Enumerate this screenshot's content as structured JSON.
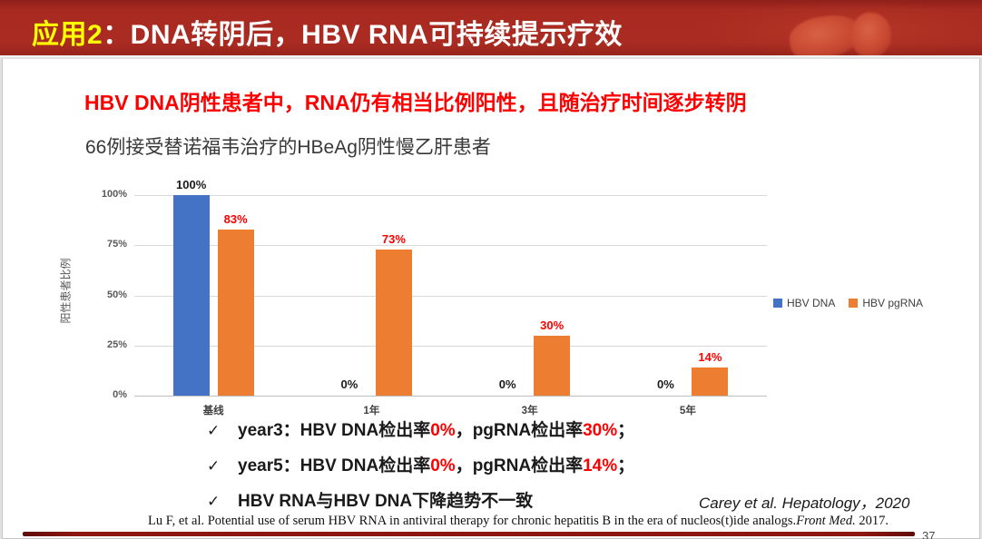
{
  "header": {
    "highlight": "应用2",
    "title_rest": "：DNA转阴后，HBV RNA可持续提示疗效"
  },
  "subtitle": "HBV DNA阴性患者中，RNA仍有相当比例阳性，且随治疗时间逐步转阴",
  "study_title": "66例接受替诺福韦治疗的HBeAg阴性慢乙肝患者",
  "chart_data": {
    "type": "bar",
    "title": "",
    "categories": [
      "基线",
      "1年",
      "3年",
      "5年"
    ],
    "series": [
      {
        "name": "HBV DNA",
        "color": "#4472C4",
        "label_color": "#1a1a1a",
        "values": [
          100,
          0,
          0,
          0
        ]
      },
      {
        "name": "HBV pgRNA",
        "color": "#ED7D31",
        "label_color": "#FF0000",
        "values": [
          83,
          73,
          30,
          14
        ]
      }
    ],
    "value_labels": [
      [
        "100%",
        "0%",
        "0%",
        "0%"
      ],
      [
        "83%",
        "73%",
        "30%",
        "14%"
      ]
    ],
    "xlabel": "",
    "ylabel": "阳性患者比例",
    "yticks": [
      "0%",
      "25%",
      "50%",
      "75%",
      "100%"
    ],
    "ylim": [
      0,
      100
    ],
    "grid": true,
    "legend_position": "right"
  },
  "bullets": [
    {
      "marker": "✓",
      "parts": [
        {
          "text": "year3：HBV DNA检出率"
        },
        {
          "text": "0%",
          "em": true
        },
        {
          "text": "，pgRNA检出率"
        },
        {
          "text": "30%",
          "em": true
        },
        {
          "text": "；"
        }
      ]
    },
    {
      "marker": "✓",
      "parts": [
        {
          "text": "year5：HBV DNA检出率"
        },
        {
          "text": "0%",
          "em": true
        },
        {
          "text": "，pgRNA检出率"
        },
        {
          "text": "14%",
          "em": true
        },
        {
          "text": "；"
        }
      ]
    },
    {
      "marker": "✓",
      "parts": [
        {
          "text": "HBV RNA与HBV DNA下降趋势不一致"
        }
      ]
    }
  ],
  "citation": "Carey et al.  Hepatology，2020",
  "footnote": {
    "pre": "Lu F, et al. Potential use of serum HBV RNA in antiviral therapy for chronic hepatitis B in the era of nucleos(t)ide analogs.",
    "journal": "Front Med.",
    "post": " 2017."
  },
  "page_number": "37",
  "colors": {
    "header_bg": "#A82A20",
    "accent_yellow": "#FFFF00",
    "emphasis_red": "#FF0000",
    "bar_blue": "#4472C4",
    "bar_orange": "#ED7D31",
    "gridline": "#D9D9D9",
    "footer_bar": "#8E1610"
  }
}
